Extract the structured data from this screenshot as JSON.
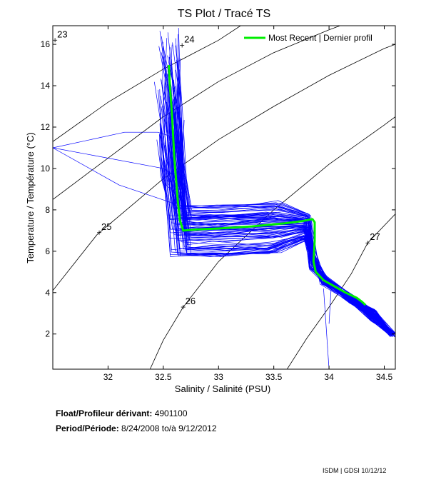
{
  "chart_data": {
    "type": "line",
    "title": "TS Plot / Tracé TS",
    "xlabel": "Salinity / Salinité (PSU)",
    "ylabel": "Temperature / Température (°C)",
    "xlim": [
      31.5,
      34.6
    ],
    "ylim": [
      0.3,
      16.9
    ],
    "xticks": [
      32,
      32.5,
      33,
      33.5,
      34,
      34.5
    ],
    "yticks": [
      2,
      4,
      6,
      8,
      10,
      12,
      14,
      16
    ],
    "legend": {
      "label": "Most Recent | Dernier profil",
      "position": "top-right"
    },
    "isopycnals": [
      {
        "sigma": 23,
        "label": "23",
        "points": [
          [
            31.5,
            11.3
          ],
          [
            32.0,
            13.2
          ],
          [
            32.5,
            14.8
          ],
          [
            33.0,
            16.2
          ],
          [
            33.2,
            16.9
          ]
        ],
        "label_at": [
          31.52,
          16.2
        ]
      },
      {
        "sigma": 24,
        "label": "24",
        "points": [
          [
            31.5,
            8.5
          ],
          [
            32.0,
            10.5
          ],
          [
            32.5,
            12.5
          ],
          [
            33.0,
            14.2
          ],
          [
            33.5,
            15.6
          ],
          [
            34.0,
            16.7
          ],
          [
            34.1,
            16.9
          ]
        ],
        "label_at": [
          32.67,
          15.95
        ]
      },
      {
        "sigma": 25,
        "label": "25",
        "points": [
          [
            31.5,
            4.1
          ],
          [
            31.9,
            6.8
          ],
          [
            32.5,
            9.5
          ],
          [
            33.0,
            11.4
          ],
          [
            33.5,
            13.0
          ],
          [
            34.0,
            14.5
          ],
          [
            34.5,
            15.8
          ],
          [
            34.6,
            16.0
          ]
        ],
        "label_at": [
          31.92,
          6.9
        ]
      },
      {
        "sigma": 26,
        "label": "26",
        "points": [
          [
            32.38,
            0.3
          ],
          [
            32.5,
            1.7
          ],
          [
            32.68,
            3.3
          ],
          [
            33.0,
            5.5
          ],
          [
            33.5,
            8.0
          ],
          [
            34.0,
            10.2
          ],
          [
            34.5,
            12.1
          ],
          [
            34.6,
            12.5
          ]
        ],
        "label_at": [
          32.68,
          3.3
        ]
      },
      {
        "sigma": 27,
        "label": "27",
        "points": [
          [
            33.62,
            0.3
          ],
          [
            33.8,
            1.8
          ],
          [
            34.0,
            3.3
          ],
          [
            34.2,
            4.9
          ],
          [
            34.35,
            6.4
          ],
          [
            34.6,
            7.8
          ]
        ],
        "label_at": [
          34.35,
          6.4
        ]
      }
    ],
    "series": [
      {
        "name": "Most Recent | Dernier profil",
        "color": "#00ee00",
        "points": [
          [
            32.55,
            15.0
          ],
          [
            32.56,
            14.0
          ],
          [
            32.58,
            12.5
          ],
          [
            32.6,
            10.5
          ],
          [
            32.63,
            8.5
          ],
          [
            32.65,
            7.5
          ],
          [
            32.68,
            7.0
          ],
          [
            32.8,
            7.05
          ],
          [
            33.0,
            7.1
          ],
          [
            33.3,
            7.2
          ],
          [
            33.6,
            7.35
          ],
          [
            33.75,
            7.45
          ],
          [
            33.85,
            7.55
          ],
          [
            33.87,
            7.4
          ],
          [
            33.87,
            6.5
          ],
          [
            33.86,
            5.5
          ],
          [
            33.88,
            5.0
          ],
          [
            33.95,
            4.6
          ],
          [
            34.05,
            4.3
          ],
          [
            34.15,
            4.0
          ],
          [
            34.25,
            3.75
          ],
          [
            34.3,
            3.55
          ],
          [
            34.33,
            3.4
          ]
        ]
      }
    ],
    "historical_profiles_color": "#0000ff"
  },
  "float_label": "Float/Profileur dérivant:",
  "float_id": "4901100",
  "period_label": "Period/Période:",
  "period_start": "8/24/2008",
  "period_sep": "to/à",
  "period_end": "9/12/2012",
  "footer": "ISDM | GDSI 10/12/12"
}
